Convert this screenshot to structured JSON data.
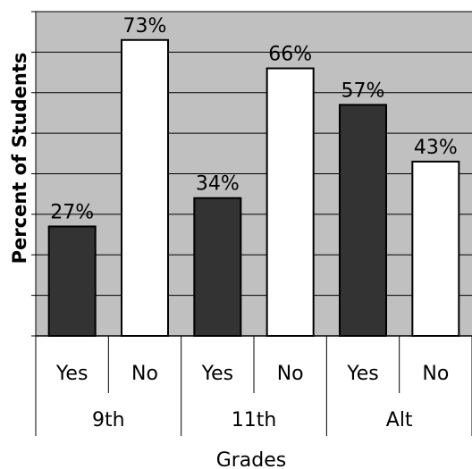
{
  "chart_data": {
    "type": "bar",
    "groups": [
      "9th",
      "11th",
      "Alt"
    ],
    "categories": [
      "Yes",
      "No",
      "Yes",
      "No",
      "Yes",
      "No"
    ],
    "values": [
      27,
      73,
      34,
      66,
      57,
      43
    ],
    "data_labels": [
      "27%",
      "73%",
      "34%",
      "66%",
      "57%",
      "43%"
    ],
    "title": "",
    "xlabel": "Grades",
    "ylabel": "Percent of Students",
    "ylim": [
      0,
      80
    ],
    "grid": true,
    "colors": {
      "plot_background": "#c0c0c0",
      "yes_bar": "#333333",
      "no_bar": "#ffffff",
      "gridline": "#000000"
    }
  }
}
